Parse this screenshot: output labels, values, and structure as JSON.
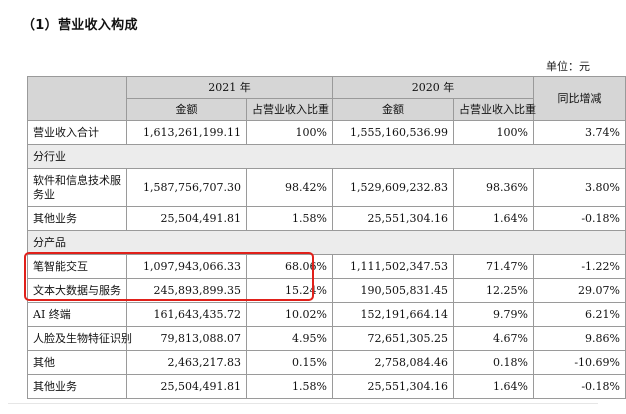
{
  "title": "（1）营业收入构成",
  "unit": "单位：元",
  "headers": {
    "year_2021": "2021 年",
    "year_2020": "2020 年",
    "amount_2021": "金额",
    "ratio_2021": "占营业收入比重",
    "amount_2020": "金额",
    "ratio_2020": "占营业收入比重",
    "yoy": "同比增减"
  },
  "rows": {
    "total": {
      "label": "营业收入合计",
      "a21": "1,613,261,199.11",
      "r21": "100%",
      "a20": "1,555,160,536.99",
      "r20": "100%",
      "yoy": "3.74%"
    },
    "section_industry": "分行业",
    "software": {
      "label": "软件和信息技术服务业",
      "a21": "1,587,756,707.30",
      "r21": "98.42%",
      "a20": "1,529,609,232.83",
      "r20": "98.36%",
      "yoy": "3.80%"
    },
    "other1": {
      "label": "其他业务",
      "a21": "25,504,491.81",
      "r21": "1.58%",
      "a20": "25,551,304.16",
      "r20": "1.64%",
      "yoy": "-0.18%"
    },
    "section_product": "分产品",
    "pen": {
      "label": "笔智能交互",
      "a21": "1,097,943,066.33",
      "r21": "68.06%",
      "a20": "1,111,502,347.53",
      "r20": "71.47%",
      "yoy": "-1.22%"
    },
    "text": {
      "label": "文本大数据与服务",
      "a21": "245,893,899.35",
      "r21": "15.24%",
      "a20": "190,505,831.45",
      "r20": "12.25%",
      "yoy": "29.07%"
    },
    "ai": {
      "label": "AI 终端",
      "a21": "161,643,435.72",
      "r21": "10.02%",
      "a20": "152,191,664.14",
      "r20": "9.79%",
      "yoy": "6.21%"
    },
    "face": {
      "label": "人脸及生物特征识别",
      "a21": "79,813,088.07",
      "r21": "4.95%",
      "a20": "72,651,305.25",
      "r20": "4.67%",
      "yoy": "9.86%"
    },
    "misc": {
      "label": "其他",
      "a21": "2,463,217.83",
      "r21": "0.15%",
      "a20": "2,758,084.46",
      "r20": "0.18%",
      "yoy": "-10.69%"
    },
    "other2": {
      "label": "其他业务",
      "a21": "25,504,491.81",
      "r21": "1.58%",
      "a20": "25,551,304.16",
      "r20": "1.64%",
      "yoy": "-0.18%"
    }
  },
  "colors": {
    "highlight": "#e0201a",
    "header_bg": "#d6d6d6",
    "section_bg": "#ececec"
  }
}
